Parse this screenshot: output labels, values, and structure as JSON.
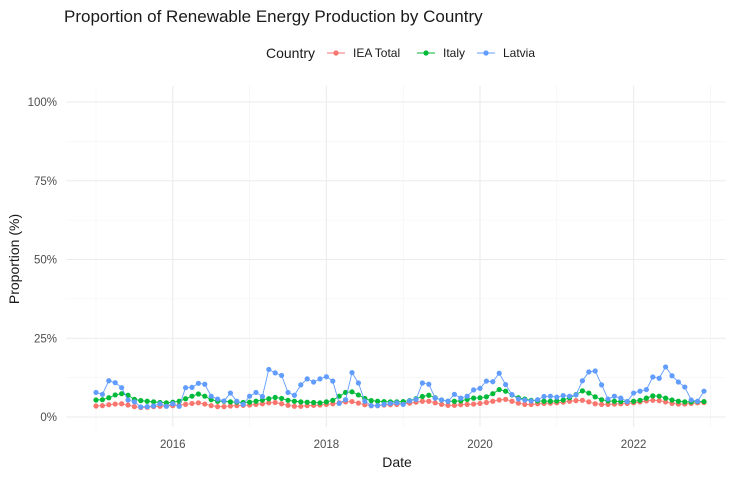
{
  "chart_data": {
    "type": "line",
    "title": "Proportion of Renewable Energy Production by Country",
    "xlabel": "Date",
    "ylabel": "Proportion (%)",
    "x_ticks": [
      "2016",
      "2018",
      "2020",
      "2022"
    ],
    "y_ticks": [
      "0%",
      "25%",
      "50%",
      "75%",
      "100%"
    ],
    "ylim": [
      0,
      100
    ],
    "xlim": [
      "2015-01",
      "2022-12"
    ],
    "grid": true,
    "legend_title": "Country",
    "legend_position": "top",
    "x": [
      "2015-01",
      "2015-02",
      "2015-03",
      "2015-04",
      "2015-05",
      "2015-06",
      "2015-07",
      "2015-08",
      "2015-09",
      "2015-10",
      "2015-11",
      "2015-12",
      "2016-01",
      "2016-02",
      "2016-03",
      "2016-04",
      "2016-05",
      "2016-06",
      "2016-07",
      "2016-08",
      "2016-09",
      "2016-10",
      "2016-11",
      "2016-12",
      "2017-01",
      "2017-02",
      "2017-03",
      "2017-04",
      "2017-05",
      "2017-06",
      "2017-07",
      "2017-08",
      "2017-09",
      "2017-10",
      "2017-11",
      "2017-12",
      "2018-01",
      "2018-02",
      "2018-03",
      "2018-04",
      "2018-05",
      "2018-06",
      "2018-07",
      "2018-08",
      "2018-09",
      "2018-10",
      "2018-11",
      "2018-12",
      "2019-01",
      "2019-02",
      "2019-03",
      "2019-04",
      "2019-05",
      "2019-06",
      "2019-07",
      "2019-08",
      "2019-09",
      "2019-10",
      "2019-11",
      "2019-12",
      "2020-01",
      "2020-02",
      "2020-03",
      "2020-04",
      "2020-05",
      "2020-06",
      "2020-07",
      "2020-08",
      "2020-09",
      "2020-10",
      "2020-11",
      "2020-12",
      "2021-01",
      "2021-02",
      "2021-03",
      "2021-04",
      "2021-05",
      "2021-06",
      "2021-07",
      "2021-08",
      "2021-09",
      "2021-10",
      "2021-11",
      "2021-12",
      "2022-01",
      "2022-02",
      "2022-03",
      "2022-04",
      "2022-05",
      "2022-06",
      "2022-07",
      "2022-08",
      "2022-09",
      "2022-10",
      "2022-11",
      "2022-12"
    ],
    "series": [
      {
        "name": "IEA Total",
        "color": "#F8766D",
        "values": [
          3.5,
          3.6,
          3.9,
          4.1,
          4.2,
          3.8,
          3.3,
          3.0,
          3.1,
          3.3,
          3.4,
          3.5,
          3.6,
          3.8,
          4.0,
          4.3,
          4.5,
          4.1,
          3.6,
          3.3,
          3.3,
          3.5,
          3.6,
          3.7,
          3.8,
          4.0,
          4.2,
          4.5,
          4.6,
          4.2,
          3.7,
          3.4,
          3.4,
          3.6,
          3.7,
          3.8,
          4.0,
          4.2,
          4.5,
          4.8,
          4.9,
          4.4,
          3.9,
          3.6,
          3.6,
          3.8,
          3.9,
          4.0,
          4.2,
          4.4,
          4.7,
          5.0,
          5.0,
          4.5,
          4.0,
          3.7,
          3.7,
          3.9,
          4.0,
          4.1,
          4.3,
          4.6,
          5.0,
          5.4,
          5.6,
          5.0,
          4.4,
          4.0,
          4.0,
          4.2,
          4.3,
          4.4,
          4.5,
          4.7,
          5.0,
          5.2,
          5.3,
          4.8,
          4.2,
          4.0,
          4.0,
          4.1,
          4.2,
          4.3,
          4.5,
          4.8,
          5.1,
          5.3,
          5.2,
          4.8,
          4.3,
          4.1,
          4.1,
          4.3,
          4.5,
          4.6
        ]
      },
      {
        "name": "Italy",
        "color": "#00BA38",
        "values": [
          5.4,
          5.5,
          6.1,
          7.0,
          7.4,
          6.9,
          5.6,
          5.2,
          5.0,
          4.8,
          4.6,
          4.5,
          4.7,
          5.0,
          5.8,
          6.6,
          7.3,
          6.6,
          5.5,
          5.0,
          5.0,
          4.8,
          4.7,
          4.6,
          4.7,
          5.0,
          5.4,
          5.8,
          6.2,
          5.9,
          5.3,
          5.0,
          4.8,
          4.7,
          4.6,
          4.5,
          4.8,
          5.3,
          6.6,
          7.8,
          8.0,
          7.0,
          5.9,
          5.2,
          5.0,
          4.9,
          4.8,
          4.8,
          4.9,
          5.2,
          5.8,
          6.5,
          6.9,
          6.1,
          5.4,
          5.0,
          5.0,
          5.1,
          5.6,
          6.0,
          6.1,
          6.4,
          7.4,
          8.7,
          8.2,
          7.0,
          6.1,
          5.7,
          5.3,
          5.1,
          5.0,
          5.0,
          5.1,
          5.4,
          6.1,
          7.1,
          8.3,
          7.6,
          6.4,
          5.5,
          5.1,
          5.0,
          4.9,
          4.9,
          5.0,
          5.3,
          6.0,
          6.7,
          6.6,
          6.0,
          5.4,
          5.0,
          4.8,
          4.8,
          4.9,
          4.9
        ]
      },
      {
        "name": "Latvia",
        "color": "#619CFF",
        "values": [
          7.8,
          7.2,
          11.5,
          10.9,
          9.3,
          5.4,
          4.8,
          3.2,
          3.3,
          3.5,
          4.2,
          3.4,
          4.2,
          3.4,
          9.3,
          9.4,
          10.7,
          10.4,
          6.6,
          5.7,
          5.1,
          7.6,
          5.0,
          4.0,
          6.6,
          7.8,
          6.5,
          15.1,
          14.0,
          13.2,
          7.8,
          6.9,
          10.2,
          12.1,
          11.1,
          12.1,
          12.8,
          11.4,
          4.3,
          5.5,
          14.1,
          10.8,
          5.0,
          3.6,
          3.6,
          4.0,
          4.3,
          4.5,
          4.0,
          5.1,
          5.6,
          10.8,
          10.4,
          6.0,
          5.4,
          5.0,
          7.2,
          6.0,
          6.6,
          8.6,
          9.1,
          11.4,
          11.2,
          13.9,
          10.3,
          7.1,
          5.7,
          5.4,
          5.1,
          5.5,
          6.5,
          6.6,
          6.3,
          6.8,
          6.6,
          7.0,
          11.5,
          14.3,
          14.6,
          10.2,
          5.7,
          6.6,
          6.0,
          4.9,
          7.6,
          8.2,
          8.7,
          12.7,
          12.3,
          15.9,
          13.1,
          11.1,
          9.5,
          5.4,
          5.0,
          8.2
        ]
      }
    ]
  }
}
